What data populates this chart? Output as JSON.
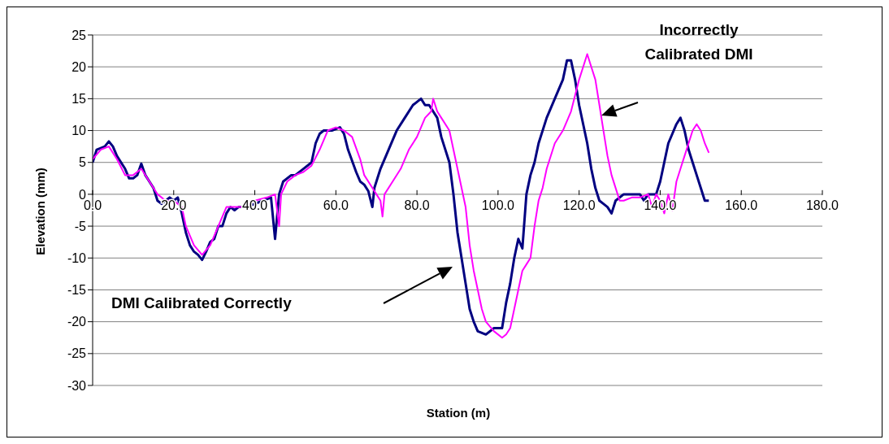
{
  "chart_data": {
    "type": "line",
    "xlabel": "Station (m)",
    "ylabel": "Elevation (mm)",
    "xlim": [
      0,
      180
    ],
    "xticks": [
      {
        "value": 0,
        "label": "0.0"
      },
      {
        "value": 20,
        "label": "20.0"
      },
      {
        "value": 40,
        "label": "40.0"
      },
      {
        "value": 60,
        "label": "60.0"
      },
      {
        "value": 80,
        "label": "80.0"
      },
      {
        "value": 100,
        "label": "100.0"
      },
      {
        "value": 120,
        "label": "120.0"
      },
      {
        "value": 140,
        "label": "140.0"
      },
      {
        "value": 160,
        "label": "160.0"
      },
      {
        "value": 180,
        "label": "180.0"
      }
    ],
    "ylim": [
      -30,
      25
    ],
    "yticks": [
      -30,
      -25,
      -20,
      -15,
      -10,
      -5,
      0,
      5,
      10,
      15,
      20,
      25
    ],
    "grid": "y",
    "legend": false,
    "marker": "none",
    "line_style": "solid",
    "series": [
      {
        "color": "#000080",
        "x": [
          0,
          1,
          3,
          4,
          5,
          6,
          8,
          9,
          10,
          11,
          12,
          13,
          14,
          15,
          16,
          17,
          18,
          19,
          20,
          21,
          22,
          23,
          24,
          25,
          26,
          27,
          28,
          29,
          30,
          31,
          32,
          33,
          34,
          35,
          36,
          38,
          40,
          42,
          44,
          45,
          46,
          47,
          49,
          50,
          52,
          54,
          55,
          56,
          57,
          59,
          61,
          62,
          63,
          65,
          66,
          67,
          68,
          69,
          69.5,
          71,
          73,
          75,
          77,
          79,
          81,
          82,
          83,
          85,
          86,
          88,
          89,
          90,
          91,
          92,
          93,
          94,
          95,
          97,
          99,
          101,
          102,
          103,
          104,
          105,
          106,
          107,
          108,
          109,
          110,
          112,
          114,
          116,
          117,
          118,
          119,
          120,
          121,
          122,
          123,
          124,
          125,
          126,
          127,
          128,
          129,
          131,
          133,
          135,
          136,
          137,
          139,
          140,
          141,
          142,
          143,
          144,
          145,
          146,
          147,
          148,
          149,
          150,
          151,
          152
        ],
        "values": [
          5,
          7,
          7.5,
          8.3,
          7.5,
          6,
          4,
          2.5,
          2.5,
          3,
          4.8,
          3,
          2,
          1,
          -1,
          -1.5,
          -1,
          -0.5,
          -1,
          -0.5,
          -3,
          -6,
          -8,
          -9,
          -9.5,
          -10.3,
          -9,
          -7.5,
          -7,
          -5,
          -5,
          -3,
          -2,
          -2.5,
          -2,
          -2,
          -1.5,
          -1,
          -0.5,
          -7,
          0,
          2,
          3,
          3,
          4,
          5,
          8,
          9.5,
          10,
          10,
          10.5,
          9.5,
          7,
          3.5,
          2,
          1.5,
          0.5,
          -2,
          1,
          4,
          7,
          10,
          12,
          14,
          15,
          14,
          14,
          12,
          9,
          5,
          0,
          -6,
          -10,
          -14,
          -18,
          -20,
          -21.5,
          -22,
          -21,
          -21,
          -17,
          -14,
          -10,
          -7,
          -8.5,
          0,
          3,
          5,
          8,
          12,
          15,
          18,
          21,
          21,
          18,
          14,
          11,
          8,
          4,
          1,
          -1,
          -1.5,
          -2,
          -3,
          -1,
          0,
          0,
          0,
          -1,
          0,
          0,
          2,
          5,
          8,
          9.5,
          11,
          12,
          10,
          7,
          5,
          3,
          1,
          -1,
          -1
        ]
      },
      {
        "color": "#ff00ff",
        "x": [
          0,
          2,
          4,
          6,
          8,
          10,
          12,
          14,
          16,
          18,
          20,
          22,
          23,
          25,
          27,
          29,
          31,
          33,
          35,
          37,
          40,
          43,
          45,
          46,
          46.5,
          48,
          50,
          52,
          54,
          56,
          58,
          60,
          62,
          64,
          66,
          67,
          69,
          70,
          71,
          71.5,
          72,
          74,
          76,
          78,
          80,
          82,
          83.5,
          84,
          85,
          86,
          88,
          89,
          90,
          92,
          93,
          94,
          95,
          96,
          97,
          99,
          101,
          102,
          103,
          104,
          105,
          106,
          107,
          108,
          109,
          110,
          111,
          112,
          114,
          116,
          118,
          120,
          121,
          122,
          123,
          124,
          125,
          126,
          127,
          128,
          129,
          130,
          131,
          133,
          135,
          137,
          138,
          139,
          140,
          141,
          142,
          143,
          144,
          145,
          146,
          147,
          148,
          149,
          150,
          151,
          152
        ],
        "values": [
          5.5,
          7,
          7.5,
          5.5,
          3,
          3,
          4,
          2,
          0,
          -1,
          -1,
          -2,
          -5,
          -8,
          -9.5,
          -8,
          -5,
          -2,
          -2,
          -2,
          -1,
          -0.5,
          0,
          -5,
          0,
          2,
          3,
          3.5,
          4.5,
          7,
          10,
          10.5,
          10,
          9,
          5.5,
          3,
          1,
          0,
          -1,
          -3.5,
          0,
          2,
          4,
          7,
          9,
          12,
          13,
          15,
          13,
          12,
          10,
          7,
          4,
          -2,
          -8,
          -12,
          -15,
          -18,
          -20,
          -21.5,
          -22.5,
          -22,
          -21,
          -18,
          -15,
          -12,
          -11,
          -10,
          -5,
          -1,
          1,
          4,
          8,
          10,
          13,
          18,
          20,
          22,
          20,
          18,
          14,
          10,
          6,
          3,
          1,
          -1,
          -1,
          -0.5,
          -0.5,
          0,
          -2,
          0,
          -1,
          -3,
          0,
          -2.5,
          2,
          4,
          6,
          8,
          10,
          11,
          10,
          8,
          6.5
        ]
      }
    ],
    "annotations": [
      "Incorrectly Calibrated DMI",
      "DMI Calibrated Correctly"
    ]
  }
}
